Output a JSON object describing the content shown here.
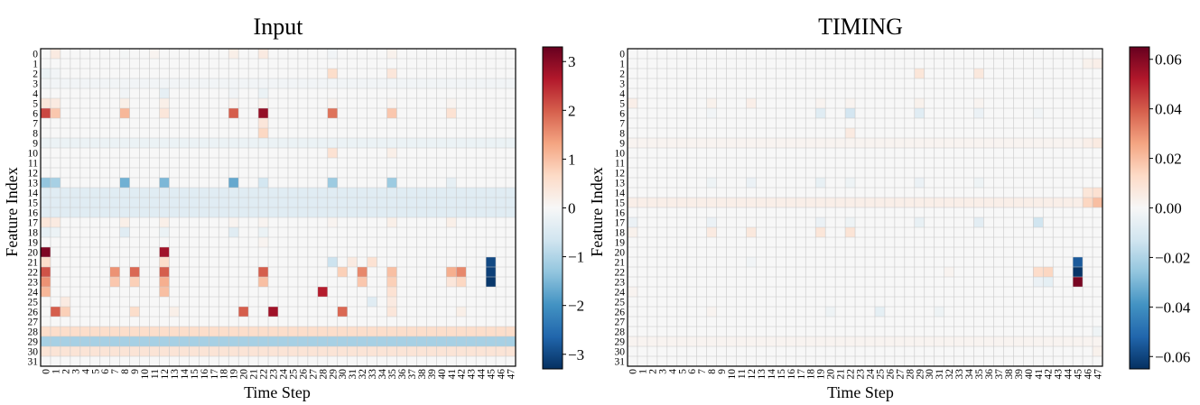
{
  "figure": {
    "panels": 2
  },
  "chart_data": [
    {
      "type": "heatmap",
      "title": "Input",
      "xlabel": "Time Step",
      "ylabel": "Feature Index",
      "x_ticks": [
        "0",
        "1",
        "2",
        "3",
        "4",
        "5",
        "6",
        "7",
        "8",
        "9",
        "10",
        "11",
        "12",
        "13",
        "14",
        "15",
        "16",
        "17",
        "18",
        "19",
        "20",
        "21",
        "22",
        "23",
        "24",
        "25",
        "26",
        "27",
        "28",
        "29",
        "30",
        "31",
        "32",
        "33",
        "34",
        "35",
        "36",
        "37",
        "38",
        "39",
        "40",
        "41",
        "42",
        "43",
        "44",
        "45",
        "46",
        "47"
      ],
      "y_ticks": [
        "0",
        "1",
        "2",
        "3",
        "4",
        "5",
        "6",
        "7",
        "8",
        "9",
        "10",
        "11",
        "12",
        "13",
        "14",
        "15",
        "16",
        "17",
        "18",
        "19",
        "20",
        "21",
        "22",
        "23",
        "24",
        "25",
        "26",
        "27",
        "28",
        "29",
        "30",
        "31"
      ],
      "colormap": "RdBu_r",
      "vmin": -3.3,
      "vmax": 3.3,
      "colorbar_ticks": [
        3,
        2,
        1,
        0,
        -1,
        -2,
        -3
      ],
      "colorbar_tick_labels": [
        "3",
        "2",
        "1",
        "0",
        "−1",
        "−2",
        "−3"
      ],
      "row_baseline": [
        0,
        0,
        0,
        -0.1,
        0,
        0,
        0,
        0,
        0,
        -0.2,
        0,
        0,
        0,
        0,
        -0.4,
        -0.4,
        -0.4,
        0,
        0,
        0,
        0,
        0,
        0,
        0,
        0,
        0,
        0,
        0,
        0.6,
        -1.1,
        0.45,
        0
      ],
      "cells": [
        [
          0,
          1,
          0.3
        ],
        [
          0,
          8,
          -0.05
        ],
        [
          0,
          11,
          0.1
        ],
        [
          0,
          19,
          0.2
        ],
        [
          0,
          22,
          0.3
        ],
        [
          0,
          29,
          -0.1
        ],
        [
          0,
          35,
          0.15
        ],
        [
          2,
          0,
          -0.2
        ],
        [
          2,
          1,
          -0.1
        ],
        [
          2,
          29,
          0.6
        ],
        [
          2,
          35,
          0.4
        ],
        [
          4,
          8,
          -0.1
        ],
        [
          4,
          12,
          -0.3
        ],
        [
          4,
          19,
          -0.1
        ],
        [
          4,
          22,
          -0.2
        ],
        [
          5,
          0,
          0.4
        ],
        [
          5,
          1,
          0.3
        ],
        [
          5,
          8,
          0.2
        ],
        [
          5,
          12,
          0.2
        ],
        [
          5,
          19,
          0.1
        ],
        [
          5,
          22,
          0.1
        ],
        [
          5,
          29,
          0.1
        ],
        [
          5,
          35,
          0.1
        ],
        [
          5,
          41,
          0.1
        ],
        [
          6,
          0,
          2.2
        ],
        [
          6,
          1,
          0.9
        ],
        [
          6,
          8,
          1.1
        ],
        [
          6,
          12,
          0.4
        ],
        [
          6,
          19,
          2.0
        ],
        [
          6,
          22,
          2.9
        ],
        [
          6,
          29,
          1.8
        ],
        [
          6,
          35,
          0.9
        ],
        [
          6,
          41,
          0.5
        ],
        [
          7,
          22,
          0.4
        ],
        [
          8,
          22,
          0.7
        ],
        [
          10,
          29,
          0.5
        ],
        [
          10,
          35,
          0.2
        ],
        [
          13,
          0,
          -1.3
        ],
        [
          13,
          1,
          -1.1
        ],
        [
          13,
          8,
          -1.6
        ],
        [
          13,
          12,
          -1.5
        ],
        [
          13,
          19,
          -1.7
        ],
        [
          13,
          22,
          -0.6
        ],
        [
          13,
          29,
          -1.2
        ],
        [
          13,
          35,
          -1.2
        ],
        [
          13,
          41,
          -0.3
        ],
        [
          17,
          0,
          0.4
        ],
        [
          17,
          1,
          0.3
        ],
        [
          17,
          8,
          0.2
        ],
        [
          17,
          12,
          0.2
        ],
        [
          17,
          19,
          0.1
        ],
        [
          17,
          22,
          0.1
        ],
        [
          17,
          29,
          0.1
        ],
        [
          17,
          35,
          0.2
        ],
        [
          17,
          41,
          0.2
        ],
        [
          18,
          0,
          -0.3
        ],
        [
          18,
          1,
          -0.2
        ],
        [
          18,
          8,
          -0.4
        ],
        [
          18,
          12,
          -0.2
        ],
        [
          18,
          19,
          -0.4
        ],
        [
          18,
          22,
          -0.2
        ],
        [
          19,
          22,
          0.1
        ],
        [
          20,
          0,
          3.1
        ],
        [
          20,
          12,
          2.8
        ],
        [
          21,
          0,
          0.6
        ],
        [
          21,
          12,
          0.6
        ],
        [
          21,
          29,
          -0.7
        ],
        [
          21,
          31,
          0.3
        ],
        [
          21,
          33,
          0.5
        ],
        [
          21,
          45,
          -3.0
        ],
        [
          22,
          0,
          2.1
        ],
        [
          22,
          7,
          1.5
        ],
        [
          22,
          9,
          1.9
        ],
        [
          22,
          12,
          2.0
        ],
        [
          22,
          22,
          2.0
        ],
        [
          22,
          30,
          0.8
        ],
        [
          22,
          32,
          1.6
        ],
        [
          22,
          35,
          1.0
        ],
        [
          22,
          41,
          1.2
        ],
        [
          22,
          42,
          1.6
        ],
        [
          22,
          45,
          -3.1
        ],
        [
          23,
          0,
          1.5
        ],
        [
          23,
          7,
          0.9
        ],
        [
          23,
          9,
          0.8
        ],
        [
          23,
          12,
          1.2
        ],
        [
          23,
          22,
          1.0
        ],
        [
          23,
          32,
          0.9
        ],
        [
          23,
          35,
          0.8
        ],
        [
          23,
          41,
          0.4
        ],
        [
          23,
          42,
          0.7
        ],
        [
          23,
          45,
          -3.2
        ],
        [
          24,
          0,
          1.1
        ],
        [
          24,
          12,
          1.0
        ],
        [
          24,
          28,
          2.6
        ],
        [
          24,
          35,
          0.5
        ],
        [
          25,
          2,
          0.3
        ],
        [
          25,
          33,
          -0.4
        ],
        [
          25,
          35,
          0.3
        ],
        [
          26,
          1,
          2.0
        ],
        [
          26,
          2,
          0.8
        ],
        [
          26,
          9,
          0.6
        ],
        [
          26,
          13,
          0.2
        ],
        [
          26,
          20,
          2.0
        ],
        [
          26,
          23,
          2.8
        ],
        [
          26,
          30,
          1.9
        ],
        [
          26,
          35,
          0.4
        ],
        [
          26,
          42,
          0.2
        ]
      ]
    },
    {
      "type": "heatmap",
      "title": "TIMING",
      "xlabel": "Time Step",
      "ylabel": "Feature Index",
      "x_ticks": [
        "0",
        "1",
        "2",
        "3",
        "4",
        "5",
        "6",
        "7",
        "8",
        "9",
        "10",
        "11",
        "12",
        "13",
        "14",
        "15",
        "16",
        "17",
        "18",
        "19",
        "20",
        "21",
        "22",
        "23",
        "24",
        "25",
        "26",
        "27",
        "28",
        "29",
        "30",
        "31",
        "32",
        "33",
        "34",
        "35",
        "36",
        "37",
        "38",
        "39",
        "40",
        "41",
        "42",
        "43",
        "44",
        "45",
        "46",
        "47"
      ],
      "y_ticks": [
        "0",
        "1",
        "2",
        "3",
        "4",
        "5",
        "6",
        "7",
        "8",
        "9",
        "10",
        "11",
        "12",
        "13",
        "14",
        "15",
        "16",
        "17",
        "18",
        "19",
        "20",
        "21",
        "22",
        "23",
        "24",
        "25",
        "26",
        "27",
        "28",
        "29",
        "30",
        "31"
      ],
      "colormap": "RdBu_r",
      "vmin": -0.065,
      "vmax": 0.065,
      "colorbar_ticks": [
        0.06,
        0.04,
        0.02,
        0.0,
        -0.02,
        -0.04,
        -0.06
      ],
      "colorbar_tick_labels": [
        "0.06",
        "0.04",
        "0.02",
        "0.00",
        "−0.02",
        "−0.04",
        "−0.06"
      ],
      "row_baseline": [
        0,
        0,
        0,
        0,
        0,
        0,
        0,
        0,
        0,
        0.002,
        0,
        0,
        0,
        0,
        0,
        0.004,
        0,
        0,
        0,
        0,
        0,
        0,
        0,
        0,
        0,
        0,
        0,
        0,
        0,
        0.002,
        0,
        0
      ],
      "cells": [
        [
          1,
          46,
          0.003
        ],
        [
          1,
          47,
          0.004
        ],
        [
          2,
          29,
          0.008
        ],
        [
          2,
          35,
          0.007
        ],
        [
          5,
          0,
          0.004
        ],
        [
          5,
          8,
          0.003
        ],
        [
          5,
          12,
          0.004
        ],
        [
          5,
          19,
          0.002
        ],
        [
          5,
          22,
          0.002
        ],
        [
          5,
          29,
          0.003
        ],
        [
          5,
          35,
          0.002
        ],
        [
          6,
          8,
          -0.002
        ],
        [
          6,
          19,
          -0.008
        ],
        [
          6,
          22,
          -0.012
        ],
        [
          6,
          29,
          -0.008
        ],
        [
          6,
          35,
          -0.004
        ],
        [
          6,
          41,
          -0.002
        ],
        [
          8,
          22,
          0.006
        ],
        [
          9,
          46,
          0.004
        ],
        [
          9,
          47,
          0.006
        ],
        [
          13,
          8,
          -0.003
        ],
        [
          13,
          12,
          -0.004
        ],
        [
          13,
          19,
          -0.005
        ],
        [
          13,
          22,
          -0.003
        ],
        [
          13,
          29,
          -0.004
        ],
        [
          13,
          35,
          -0.003
        ],
        [
          14,
          46,
          0.008
        ],
        [
          14,
          47,
          0.01
        ],
        [
          15,
          46,
          0.014
        ],
        [
          15,
          47,
          0.02
        ],
        [
          17,
          0,
          -0.004
        ],
        [
          17,
          8,
          -0.004
        ],
        [
          17,
          19,
          -0.004
        ],
        [
          17,
          22,
          -0.003
        ],
        [
          17,
          29,
          -0.005
        ],
        [
          17,
          35,
          -0.007
        ],
        [
          17,
          41,
          -0.013
        ],
        [
          18,
          0,
          0.003
        ],
        [
          18,
          8,
          0.006
        ],
        [
          18,
          12,
          0.007
        ],
        [
          18,
          19,
          0.008
        ],
        [
          18,
          22,
          0.009
        ],
        [
          21,
          12,
          -0.002
        ],
        [
          21,
          45,
          -0.055
        ],
        [
          22,
          32,
          0.002
        ],
        [
          22,
          41,
          0.012
        ],
        [
          22,
          42,
          0.014
        ],
        [
          22,
          45,
          -0.064
        ],
        [
          23,
          41,
          -0.004
        ],
        [
          23,
          42,
          -0.006
        ],
        [
          23,
          45,
          0.062
        ],
        [
          24,
          0,
          0.002
        ],
        [
          26,
          8,
          0.002
        ],
        [
          26,
          20,
          -0.003
        ],
        [
          26,
          25,
          -0.006
        ],
        [
          26,
          31,
          -0.003
        ],
        [
          28,
          47,
          -0.003
        ],
        [
          30,
          47,
          0.003
        ]
      ]
    }
  ]
}
